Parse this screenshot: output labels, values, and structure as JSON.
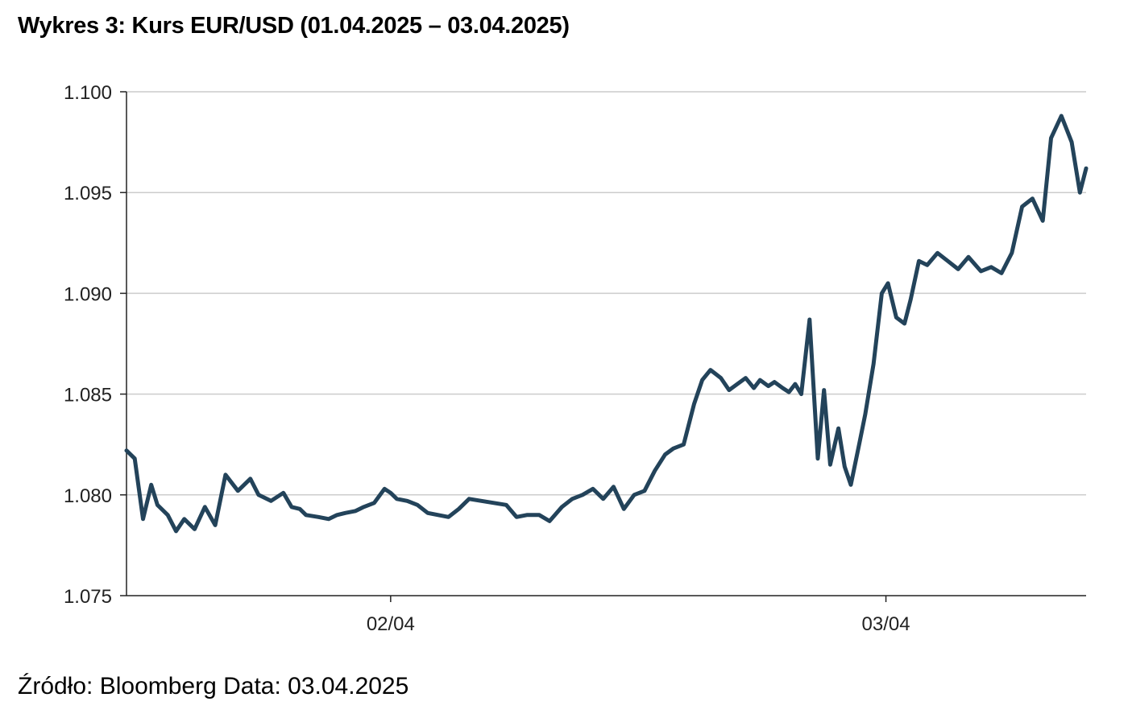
{
  "title": "Wykres 3: Kurs EUR/USD (01.04.2025 – 03.04.2025)",
  "source": "Źródło: Bloomberg Data: 03.04.2025",
  "chart_data": {
    "type": "line",
    "title": "Wykres 3: Kurs EUR/USD (01.04.2025 – 03.04.2025)",
    "xlabel": "",
    "ylabel": "",
    "ylim": [
      1.075,
      1.1
    ],
    "yticks": [
      "1.100",
      "1.095",
      "1.090",
      "1.085",
      "1.080",
      "1.075"
    ],
    "xticks": [
      {
        "label": "02/04",
        "x": 24
      },
      {
        "label": "03/04",
        "x": 48
      }
    ],
    "xlim": [
      11.2,
      57.7
    ],
    "x_unit": "hours since 01.04.2025 00:00",
    "grid": "horizontal",
    "legend": "none",
    "line_color": "#23435a",
    "series": [
      {
        "name": "EUR/USD",
        "x": [
          11.2,
          11.6,
          12.0,
          12.4,
          12.7,
          13.2,
          13.6,
          14.0,
          14.5,
          15.0,
          15.5,
          16.0,
          16.6,
          17.2,
          17.6,
          18.2,
          18.8,
          19.2,
          19.6,
          19.9,
          20.5,
          21.0,
          21.4,
          21.8,
          22.3,
          22.7,
          23.2,
          23.7,
          24.0,
          24.3,
          24.8,
          25.3,
          25.8,
          26.3,
          26.8,
          27.3,
          27.8,
          28.4,
          29.0,
          29.6,
          30.1,
          30.6,
          31.2,
          31.7,
          32.3,
          32.8,
          33.3,
          33.8,
          34.3,
          34.8,
          35.3,
          35.8,
          36.3,
          36.8,
          37.3,
          37.7,
          38.2,
          38.7,
          39.1,
          39.5,
          40.0,
          40.4,
          40.8,
          41.2,
          41.6,
          41.9,
          42.3,
          42.6,
          43.0,
          43.3,
          43.6,
          43.9,
          44.3,
          44.7,
          45.0,
          45.3,
          45.7,
          46.0,
          46.3,
          46.7,
          47.0,
          47.4,
          47.8,
          48.1,
          48.5,
          48.9,
          49.2,
          49.6,
          50.0,
          50.5,
          51.0,
          51.5,
          52.0,
          52.6,
          53.1,
          53.6,
          54.1,
          54.6,
          55.1,
          55.6,
          56.0,
          56.5,
          57.0,
          57.4,
          57.7
        ],
        "values": [
          1.0822,
          1.0818,
          1.0788,
          1.0805,
          1.0795,
          1.079,
          1.0782,
          1.0788,
          1.0783,
          1.0794,
          1.0785,
          1.081,
          1.0802,
          1.0808,
          1.08,
          1.0797,
          1.0801,
          1.0794,
          1.0793,
          1.079,
          1.0789,
          1.0788,
          1.079,
          1.0791,
          1.0792,
          1.0794,
          1.0796,
          1.0803,
          1.0801,
          1.0798,
          1.0797,
          1.0795,
          1.0791,
          1.079,
          1.0789,
          1.0793,
          1.0798,
          1.0797,
          1.0796,
          1.0795,
          1.0789,
          1.079,
          1.079,
          1.0787,
          1.0794,
          1.0798,
          1.08,
          1.0803,
          1.0798,
          1.0804,
          1.0793,
          1.08,
          1.0802,
          1.0812,
          1.082,
          1.0823,
          1.0825,
          1.0845,
          1.0857,
          1.0862,
          1.0858,
          1.0852,
          1.0855,
          1.0858,
          1.0853,
          1.0857,
          1.0854,
          1.0856,
          1.0853,
          1.0851,
          1.0855,
          1.085,
          1.0887,
          1.0818,
          1.0852,
          1.0815,
          1.0833,
          1.0814,
          1.0805,
          1.0825,
          1.084,
          1.0865,
          1.09,
          1.0905,
          1.0888,
          1.0885,
          1.0897,
          1.0916,
          1.0914,
          1.092,
          1.0916,
          1.0912,
          1.0918,
          1.0911,
          1.0913,
          1.091,
          1.092,
          1.0943,
          1.0947,
          1.0936,
          1.0977,
          1.0988,
          1.0975,
          1.095,
          1.0962
        ]
      }
    ]
  }
}
